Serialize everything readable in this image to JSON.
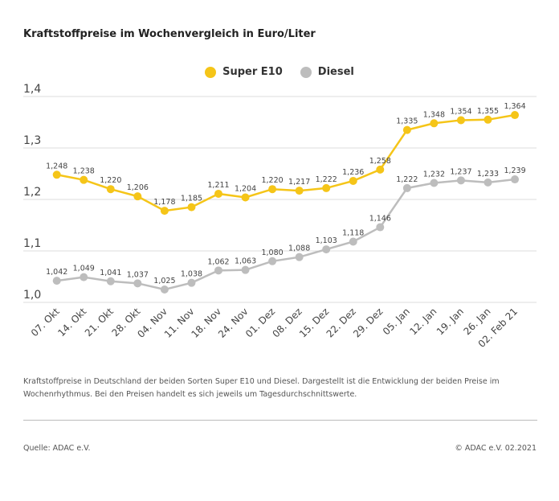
{
  "title": "Kraftstoffpreise im Wochenvergleich in Euro/Liter",
  "caption": "Kraftstoffpreise in Deutschland der beiden Sorten Super E10 und Diesel. Dargestellt ist die Entwicklung der beiden Preise im Wochenrhythmus. Bei den Preisen handelt es sich jeweils um Tagesdurchschnittswerte.",
  "source": "Quelle: ADAC e.V.",
  "copyright": "© ADAC e.V. 02.2021",
  "chart_data": {
    "type": "line",
    "title": "Kraftstoffpreise im Wochenvergleich in Euro/Liter",
    "categories": [
      "07. Okt",
      "14. Okt",
      "21. Okt",
      "28. Okt",
      "04. Nov",
      "11. Nov",
      "18. Nov",
      "24. Nov",
      "01. Dez",
      "08. Dez",
      "15. Dez",
      "22. Dez",
      "29. Dez",
      "05. Jan",
      "12. Jan",
      "19. Jan",
      "26. Jan",
      "02. Feb 21"
    ],
    "series": [
      {
        "name": "Super E10",
        "color": "#f5c518",
        "values": [
          1.248,
          1.238,
          1.22,
          1.206,
          1.178,
          1.185,
          1.211,
          1.204,
          1.22,
          1.217,
          1.222,
          1.236,
          1.258,
          1.335,
          1.348,
          1.354,
          1.355,
          1.364
        ],
        "labels": [
          "1,248",
          "1,238",
          "1,220",
          "1,206",
          "1,178",
          "1,185",
          "1,211",
          "1,204",
          "1,220",
          "1,217",
          "1,222",
          "1,236",
          "1,258",
          "1,335",
          "1,348",
          "1,354",
          "1,355",
          "1,364"
        ]
      },
      {
        "name": "Diesel",
        "color": "#bdbdbd",
        "values": [
          1.042,
          1.049,
          1.041,
          1.037,
          1.025,
          1.038,
          1.062,
          1.063,
          1.08,
          1.088,
          1.103,
          1.118,
          1.146,
          1.222,
          1.232,
          1.237,
          1.233,
          1.239
        ],
        "labels": [
          "1,042",
          "1,049",
          "1,041",
          "1,037",
          "1,025",
          "1,038",
          "1,062",
          "1,063",
          "1,080",
          "1,088",
          "1,103",
          "1,118",
          "1,146",
          "1,222",
          "1,232",
          "1,237",
          "1,233",
          "1,239"
        ]
      }
    ],
    "yticks": [
      1.0,
      1.1,
      1.2,
      1.3,
      1.4
    ],
    "ytick_labels": [
      "1,0",
      "1,1",
      "1,2",
      "1,3",
      "1,4"
    ],
    "ylim": [
      1.0,
      1.4
    ],
    "grid": true,
    "legend": "top-center"
  }
}
